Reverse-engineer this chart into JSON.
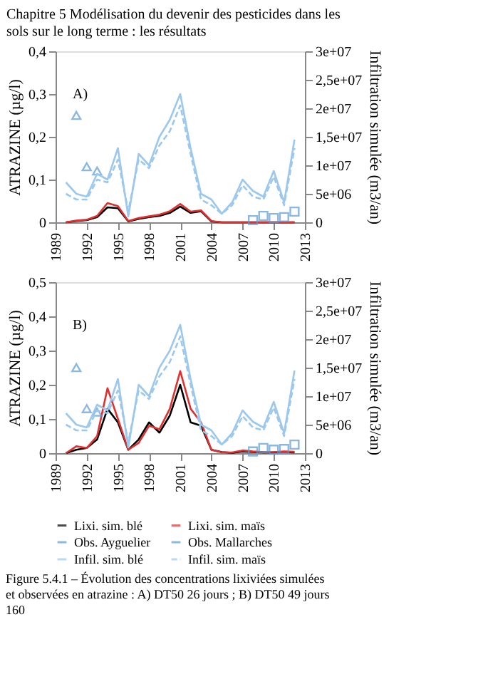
{
  "chart_data": [
    {
      "type": "line",
      "title": "Chapitre 5 Modélisation du devenir des pesticides dans les sols sur le long terme : les résultats",
      "ylabel": "ATRAZINE (µg/l)",
      "y2label": "Infiltration simulée (m3/an)",
      "annotations": [
        "A)"
      ],
      "x": [
        1990,
        1991,
        1992,
        1993,
        1994,
        1995,
        1996,
        1997,
        1998,
        1999,
        2000,
        2001,
        2002,
        2003,
        2004,
        2005,
        2006,
        2007,
        2008,
        2009,
        2010,
        2011,
        2012
      ],
      "xlim": [
        1989,
        2013
      ],
      "xticks": [
        1989,
        1992,
        1995,
        1998,
        2001,
        2004,
        2007,
        2010,
        2013
      ],
      "ylim": [
        0,
        0.4
      ],
      "yticks": [
        0,
        {
          "value": 0.1,
          "label": "0,1"
        },
        {
          "value": 0.2,
          "label": "0,2"
        },
        {
          "value": 0.3,
          "label": "0,3"
        },
        {
          "value": 0.4,
          "label": "0,4"
        }
      ],
      "y2lim": [
        0,
        30000000
      ],
      "y2ticks": [
        0,
        {
          "value": 5000000,
          "label": "5e+06"
        },
        {
          "value": 10000000,
          "label": "1e+07"
        },
        {
          "value": 15000000,
          "label": "1,5e+07"
        },
        {
          "value": 20000000,
          "label": "2e+07"
        },
        {
          "value": 25000000,
          "label": "2,5e+07"
        },
        {
          "value": 30000000,
          "label": "3e+07"
        }
      ],
      "legend": "bottom",
      "grid": false,
      "series": [
        {
          "name": "Lixi. sim. blé",
          "color": "#000000",
          "values": [
            0,
            0.003,
            0.005,
            0.012,
            0.035,
            0.033,
            0.002,
            0.008,
            0.012,
            0.015,
            0.022,
            0.037,
            0.022,
            0.026,
            0.002,
            0,
            0,
            0,
            0,
            0,
            0,
            0,
            0
          ]
        },
        {
          "name": "Lixi. sim. maïs",
          "color": "#e03030",
          "values": [
            0,
            0.004,
            0.006,
            0.015,
            0.045,
            0.038,
            0.003,
            0.01,
            0.014,
            0.018,
            0.026,
            0.043,
            0.025,
            0.028,
            0.003,
            0,
            0,
            0,
            0,
            0,
            0,
            0,
            0
          ]
        },
        {
          "name": "Obs. Ayguelier",
          "type": "scatter",
          "marker": "triangle",
          "color": "#5b9bd5",
          "x": [
            1991,
            1992,
            1993
          ],
          "values": [
            0.25,
            0.13,
            0.12
          ]
        },
        {
          "name": "Obs. Mallarches",
          "type": "scatter",
          "marker": "square",
          "color": "#5b9bd5",
          "x": [
            2008,
            2009,
            2010,
            2011,
            2012
          ],
          "values": [
            0.005,
            0.015,
            0.01,
            0.012,
            0.025
          ]
        },
        {
          "name": "Infil. sim. blé",
          "color": "#9cc8ee",
          "axis": "y2",
          "values": [
            7000000,
            5000000,
            4500000,
            8500000,
            7500000,
            13000000,
            1000000,
            12000000,
            10000000,
            15000000,
            18000000,
            22500000,
            13000000,
            5000000,
            4000000,
            1500000,
            3500000,
            7500000,
            5500000,
            4500000,
            9000000,
            3500000,
            14500000
          ]
        },
        {
          "name": "Infil. sim. maïs",
          "color": "#9cc8ee",
          "axis": "y2",
          "line_style": "dashed",
          "values": [
            5000000,
            4000000,
            4000000,
            7500000,
            7000000,
            11000000,
            2000000,
            11000000,
            9500000,
            13500000,
            16000000,
            20500000,
            12000000,
            4000000,
            3000000,
            1500000,
            3000000,
            6500000,
            4500000,
            4000000,
            8000000,
            3000000,
            13000000
          ]
        }
      ]
    },
    {
      "type": "line",
      "ylabel": "ATRAZINE (µg/l)",
      "y2label": "Infiltration simulée (m3/an)",
      "annotations": [
        "B)",
        "Figure 5.4.1 – Évolution des concentrations lixiviées simulées et observées en atrazine : A) DT50 26 jours ; B) DT50 49 jours",
        "160"
      ],
      "x": [
        1990,
        1991,
        1992,
        1993,
        1994,
        1995,
        1996,
        1997,
        1998,
        1999,
        2000,
        2001,
        2002,
        2003,
        2004,
        2005,
        2006,
        2007,
        2008,
        2009,
        2010,
        2011,
        2012
      ],
      "xlim": [
        1989,
        2013
      ],
      "xticks": [
        1989,
        1992,
        1995,
        1998,
        2001,
        2004,
        2007,
        2010,
        2013
      ],
      "ylim": [
        0,
        0.5
      ],
      "yticks": [
        0,
        {
          "value": 0.1,
          "label": "0,1"
        },
        {
          "value": 0.2,
          "label": "0,2"
        },
        {
          "value": 0.3,
          "label": "0,3"
        },
        {
          "value": 0.4,
          "label": "0,4"
        },
        {
          "value": 0.5,
          "label": "0,5"
        }
      ],
      "y2lim": [
        0,
        30000000
      ],
      "y2ticks": [
        0,
        {
          "value": 5000000,
          "label": "5e+06"
        },
        {
          "value": 10000000,
          "label": "1e+07"
        },
        {
          "value": 15000000,
          "label": "1,5e+07"
        },
        {
          "value": 20000000,
          "label": "2e+07"
        },
        {
          "value": 25000000,
          "label": "2,5e+07"
        },
        {
          "value": 30000000,
          "label": "3e+07"
        }
      ],
      "legend": "bottom",
      "grid": false,
      "series": [
        {
          "name": "Lixi. sim. blé",
          "color": "#000000",
          "values": [
            0,
            0.01,
            0.015,
            0.04,
            0.13,
            0.09,
            0.01,
            0.04,
            0.09,
            0.06,
            0.11,
            0.2,
            0.09,
            0.08,
            0.01,
            0.003,
            0.001,
            0.005,
            0.003,
            0.002,
            0.002,
            0.003,
            0.002
          ]
        },
        {
          "name": "Lixi. sim. maïs",
          "color": "#e03030",
          "values": [
            0,
            0.02,
            0.015,
            0.05,
            0.19,
            0.1,
            0.01,
            0.03,
            0.08,
            0.07,
            0.13,
            0.24,
            0.13,
            0.09,
            0.01,
            0.002,
            0.002,
            0.008,
            0.005,
            0.003,
            0.003,
            0.005,
            0.004
          ]
        },
        {
          "name": "Obs. Ayguelier",
          "type": "scatter",
          "marker": "triangle",
          "color": "#5b9bd5",
          "x": [
            1991,
            1992,
            1993
          ],
          "values": [
            0.25,
            0.13,
            0.12
          ]
        },
        {
          "name": "Obs. Mallarches",
          "type": "scatter",
          "marker": "square",
          "color": "#5b9bd5",
          "x": [
            2008,
            2009,
            2010,
            2011,
            2012
          ],
          "values": [
            0.005,
            0.015,
            0.01,
            0.012,
            0.025
          ]
        },
        {
          "name": "Infil. sim. blé",
          "color": "#9cc8ee",
          "axis": "y2",
          "values": [
            7000000,
            5000000,
            4500000,
            8500000,
            7500000,
            13000000,
            1000000,
            12000000,
            10000000,
            15000000,
            18000000,
            22500000,
            13000000,
            5000000,
            4000000,
            1500000,
            3500000,
            7500000,
            5500000,
            4500000,
            9000000,
            3500000,
            14500000
          ]
        },
        {
          "name": "Infil. sim. maïs",
          "color": "#9cc8ee",
          "axis": "y2",
          "line_style": "dashed",
          "values": [
            5000000,
            4000000,
            4000000,
            7500000,
            7000000,
            11000000,
            2000000,
            11000000,
            9500000,
            13500000,
            16000000,
            20500000,
            12000000,
            4000000,
            3000000,
            1500000,
            3000000,
            6500000,
            4500000,
            4000000,
            8000000,
            3000000,
            13000000
          ]
        }
      ]
    }
  ]
}
